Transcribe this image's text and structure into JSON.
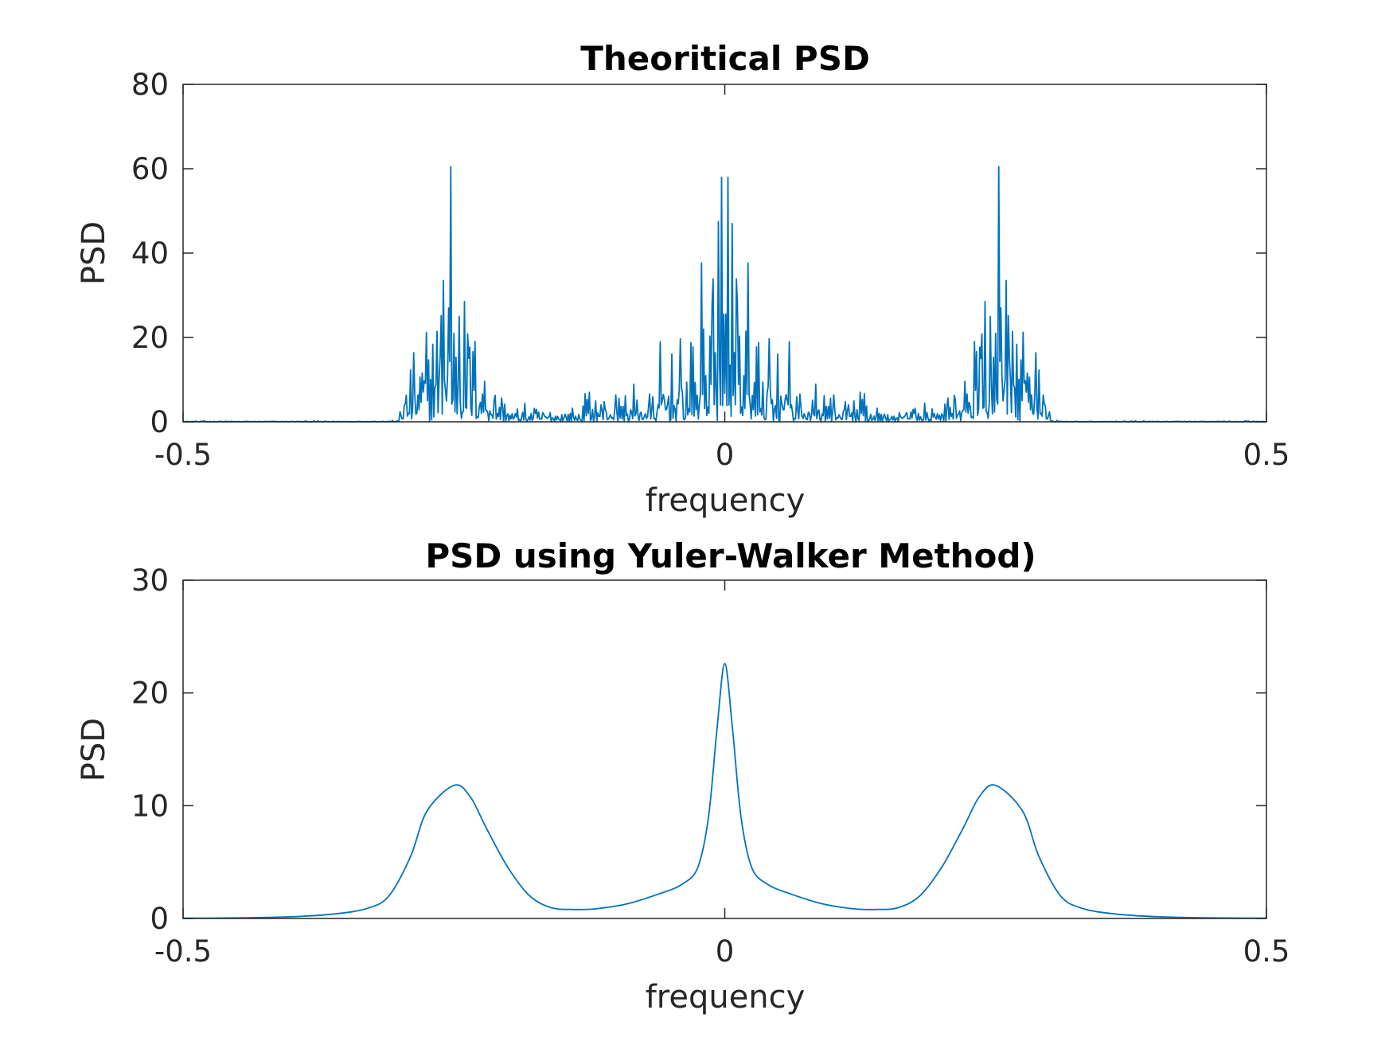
{
  "chart_data": [
    {
      "type": "line",
      "title": "Theoritical PSD",
      "xlabel": "frequency",
      "ylabel": "PSD",
      "xlim": [
        -0.5,
        0.5
      ],
      "ylim": [
        0,
        80
      ],
      "xticks": [
        -0.5,
        0,
        0.5
      ],
      "xtick_labels": [
        "-0.5",
        "0",
        "0.5"
      ],
      "yticks": [
        0,
        20,
        40,
        60,
        80
      ],
      "ytick_labels": [
        "0",
        "20",
        "40",
        "60",
        "80"
      ],
      "grid": false,
      "series": [
        {
          "color": "#0072BD",
          "peaks": [
            {
              "x": -0.253,
              "y": 60.5
            },
            {
              "x": 0.253,
              "y": 60.5
            },
            {
              "x": -0.003,
              "y": 58.0
            },
            {
              "x": 0.003,
              "y": 58.0
            },
            {
              "x": -0.006,
              "y": 47.5
            },
            {
              "x": 0.007,
              "y": 47.0
            },
            {
              "x": -0.26,
              "y": 33.5
            },
            {
              "x": 0.26,
              "y": 33.5
            },
            {
              "x": -0.255,
              "y": 27.0
            },
            {
              "x": 0.255,
              "y": 27.0
            },
            {
              "x": -0.245,
              "y": 25.0
            },
            {
              "x": 0.245,
              "y": 25.0
            },
            {
              "x": -0.012,
              "y": 28.0
            },
            {
              "x": 0.012,
              "y": 28.0
            },
            {
              "x": -0.02,
              "y": 22.0
            },
            {
              "x": 0.02,
              "y": 21.5
            }
          ]
        }
      ]
    },
    {
      "type": "line",
      "title": "PSD using Yuler-Walker Method)",
      "xlabel": "frequency",
      "ylabel": "PSD",
      "xlim": [
        -0.5,
        0.5
      ],
      "ylim": [
        0,
        30
      ],
      "xticks": [
        -0.5,
        0,
        0.5
      ],
      "xtick_labels": [
        "-0.5",
        "0",
        "0.5"
      ],
      "yticks": [
        0,
        10,
        20,
        30
      ],
      "ytick_labels": [
        "0",
        "10",
        "20",
        "30"
      ],
      "grid": false,
      "series": [
        {
          "color": "#0072BD",
          "points": [
            [
              -0.5,
              0.02
            ],
            [
              -0.45,
              0.05
            ],
            [
              -0.4,
              0.15
            ],
            [
              -0.36,
              0.4
            ],
            [
              -0.33,
              0.9
            ],
            [
              -0.31,
              2.0
            ],
            [
              -0.29,
              5.5
            ],
            [
              -0.275,
              9.5
            ],
            [
              -0.25,
              11.8
            ],
            [
              -0.235,
              10.8
            ],
            [
              -0.22,
              8.0
            ],
            [
              -0.2,
              4.5
            ],
            [
              -0.18,
              2.0
            ],
            [
              -0.16,
              0.95
            ],
            [
              -0.14,
              0.8
            ],
            [
              -0.12,
              0.85
            ],
            [
              -0.09,
              1.3
            ],
            [
              -0.06,
              2.2
            ],
            [
              -0.04,
              3.0
            ],
            [
              -0.025,
              4.5
            ],
            [
              -0.015,
              9.0
            ],
            [
              -0.007,
              17.0
            ],
            [
              0.0,
              22.6
            ],
            [
              0.007,
              17.0
            ],
            [
              0.015,
              9.0
            ],
            [
              0.025,
              4.5
            ],
            [
              0.04,
              3.0
            ],
            [
              0.06,
              2.2
            ],
            [
              0.09,
              1.3
            ],
            [
              0.12,
              0.85
            ],
            [
              0.14,
              0.8
            ],
            [
              0.16,
              0.95
            ],
            [
              0.18,
              2.0
            ],
            [
              0.2,
              4.5
            ],
            [
              0.22,
              8.0
            ],
            [
              0.235,
              10.8
            ],
            [
              0.25,
              11.8
            ],
            [
              0.275,
              9.5
            ],
            [
              0.29,
              5.5
            ],
            [
              0.31,
              2.0
            ],
            [
              0.33,
              0.9
            ],
            [
              0.36,
              0.4
            ],
            [
              0.4,
              0.15
            ],
            [
              0.45,
              0.05
            ],
            [
              0.5,
              0.02
            ]
          ]
        }
      ]
    }
  ]
}
